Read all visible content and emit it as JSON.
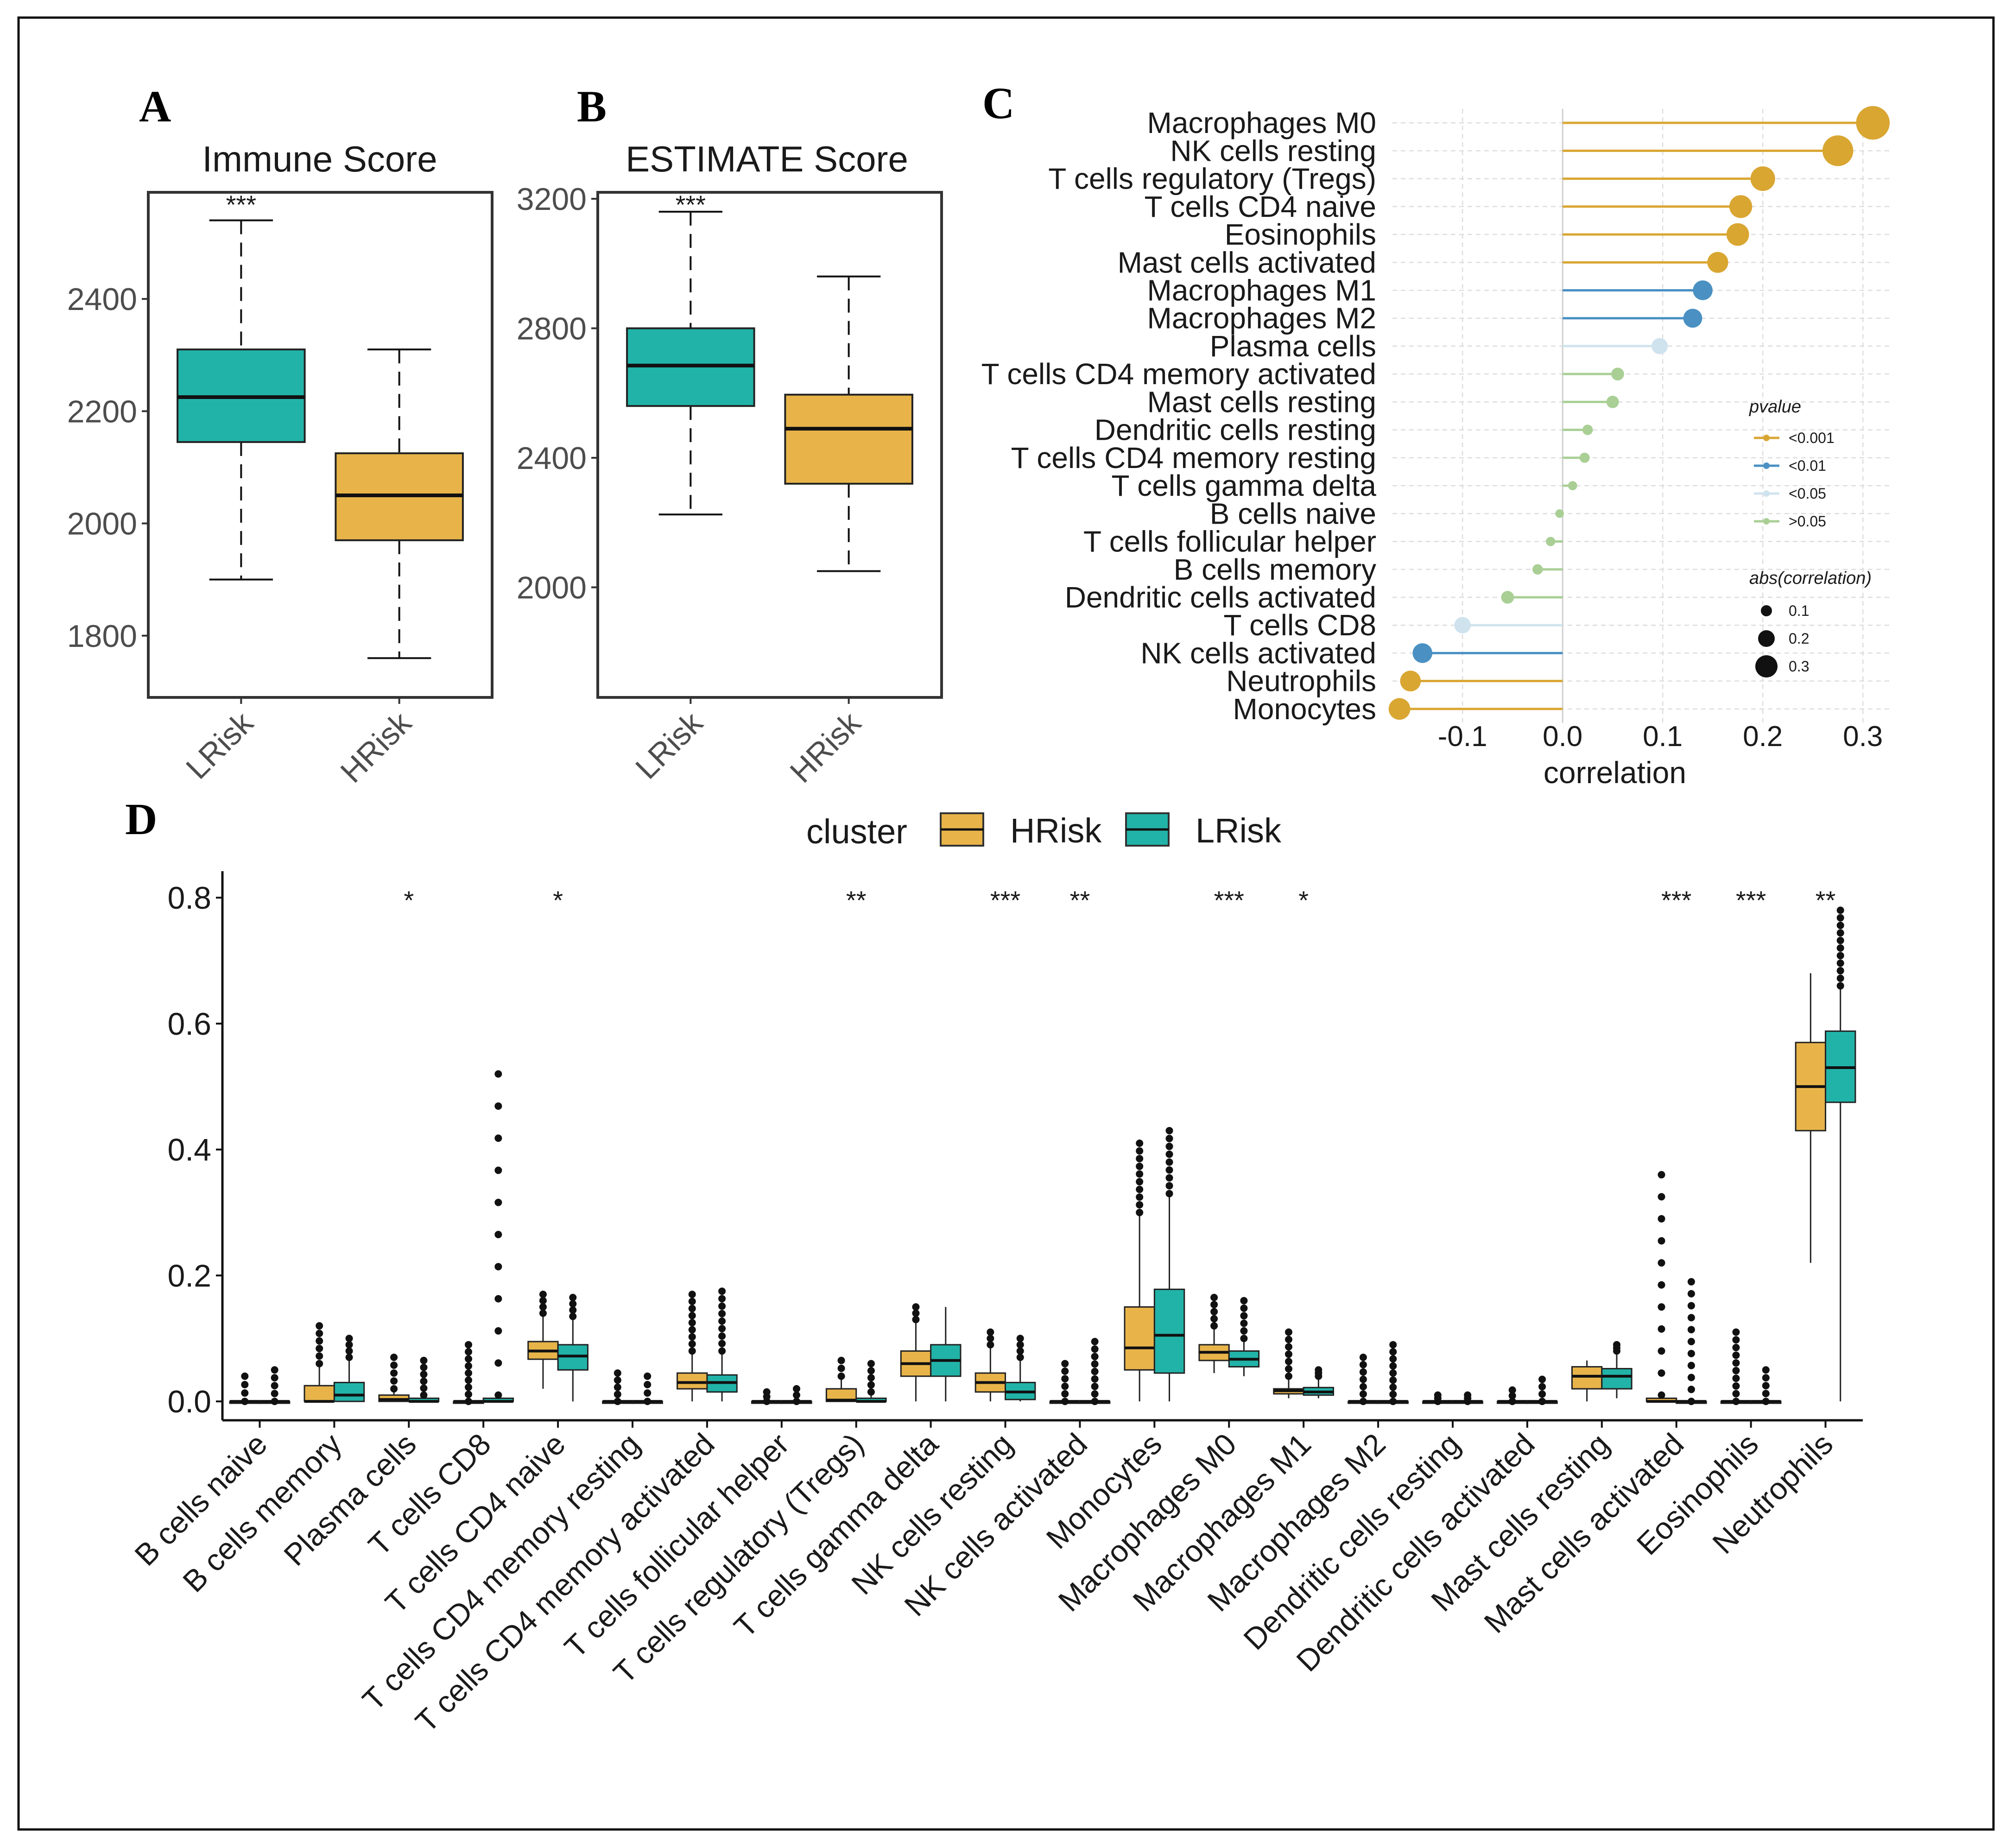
{
  "colors": {
    "hrisk": "#e8b44a",
    "lrisk": "#22b3a8",
    "p001": "#d9a632",
    "p01": "#4a90c2",
    "p05": "#cfe3ee",
    "p_ns": "#a9cf95"
  },
  "panels": {
    "A": {
      "letter": "A",
      "title": "Immune Score"
    },
    "B": {
      "letter": "B",
      "title": "ESTIMATE Score"
    },
    "C": {
      "letter": "C"
    },
    "D": {
      "letter": "D"
    }
  },
  "chart_data": [
    {
      "id": "A",
      "type": "boxplot",
      "title": "Immune Score",
      "categories": [
        "LRisk",
        "HRisk"
      ],
      "ylim": [
        1690,
        2590
      ],
      "yticks": [
        1800,
        2000,
        2200,
        2400
      ],
      "boxes": [
        {
          "group": "LRisk",
          "min": 1900,
          "q1": 2145,
          "median": 2225,
          "q3": 2310,
          "max": 2540,
          "color": "#22b3a8"
        },
        {
          "group": "HRisk",
          "min": 1760,
          "q1": 1970,
          "median": 2050,
          "q3": 2125,
          "max": 2310,
          "color": "#e8b44a"
        }
      ],
      "significance": "***"
    },
    {
      "id": "B",
      "type": "boxplot",
      "title": "ESTIMATE Score",
      "categories": [
        "LRisk",
        "HRisk"
      ],
      "ylim": [
        1660,
        3220
      ],
      "yticks": [
        2000,
        2400,
        2800,
        3200
      ],
      "boxes": [
        {
          "group": "LRisk",
          "min": 2225,
          "q1": 2560,
          "median": 2685,
          "q3": 2800,
          "max": 3160,
          "color": "#22b3a8"
        },
        {
          "group": "HRisk",
          "min": 2050,
          "q1": 2320,
          "median": 2490,
          "q3": 2595,
          "max": 2960,
          "color": "#e8b44a"
        }
      ],
      "significance": "***"
    },
    {
      "id": "C",
      "type": "lollipop",
      "xlabel": "correlation",
      "xlim": [
        -0.17,
        0.33
      ],
      "xticks": [
        -0.1,
        0.0,
        0.1,
        0.2,
        0.3
      ],
      "legend": {
        "pvalue_title": "pvalue",
        "pvalue_levels": [
          "<0.001",
          "<0.01",
          "<0.05",
          ">0.05"
        ],
        "size_title": "abs(correlation)",
        "size_levels": [
          "0.1",
          "0.2",
          "0.3"
        ]
      },
      "rows": [
        {
          "cell": "Macrophages M0",
          "corr": 0.31,
          "p": "<0.001"
        },
        {
          "cell": "NK cells resting",
          "corr": 0.275,
          "p": "<0.001"
        },
        {
          "cell": "T cells regulatory (Tregs)",
          "corr": 0.2,
          "p": "<0.001"
        },
        {
          "cell": "T cells CD4 naive",
          "corr": 0.178,
          "p": "<0.001"
        },
        {
          "cell": "Eosinophils",
          "corr": 0.175,
          "p": "<0.001"
        },
        {
          "cell": "Mast cells activated",
          "corr": 0.155,
          "p": "<0.001"
        },
        {
          "cell": "Macrophages M1",
          "corr": 0.14,
          "p": "<0.01"
        },
        {
          "cell": "Macrophages M2",
          "corr": 0.13,
          "p": "<0.01"
        },
        {
          "cell": "Plasma cells",
          "corr": 0.097,
          "p": "<0.05"
        },
        {
          "cell": "T cells CD4 memory activated",
          "corr": 0.055,
          "p": ">0.05"
        },
        {
          "cell": "Mast cells resting",
          "corr": 0.05,
          "p": ">0.05"
        },
        {
          "cell": "Dendritic cells resting",
          "corr": 0.025,
          "p": ">0.05"
        },
        {
          "cell": "T cells CD4 memory resting",
          "corr": 0.022,
          "p": ">0.05"
        },
        {
          "cell": "T cells gamma delta",
          "corr": 0.01,
          "p": ">0.05"
        },
        {
          "cell": "B cells naive",
          "corr": -0.003,
          "p": ">0.05"
        },
        {
          "cell": "T cells follicular helper",
          "corr": -0.012,
          "p": ">0.05"
        },
        {
          "cell": "B cells memory",
          "corr": -0.025,
          "p": ">0.05"
        },
        {
          "cell": "Dendritic cells activated",
          "corr": -0.055,
          "p": ">0.05"
        },
        {
          "cell": "T cells CD8",
          "corr": -0.1,
          "p": "<0.05"
        },
        {
          "cell": "NK cells activated",
          "corr": -0.14,
          "p": "<0.01"
        },
        {
          "cell": "Neutrophils",
          "corr": -0.152,
          "p": "<0.001"
        },
        {
          "cell": "Monocytes",
          "corr": -0.163,
          "p": "<0.001"
        }
      ]
    },
    {
      "id": "D",
      "type": "grouped_boxplot",
      "legend_title": "cluster",
      "legend_items": [
        "HRisk",
        "LRisk"
      ],
      "ylim": [
        -0.03,
        0.82
      ],
      "yticks": [
        0.0,
        0.2,
        0.4,
        0.6,
        0.8
      ],
      "groups": [
        {
          "cell": "B cells naive",
          "sig": "",
          "HRisk": [
            0,
            0,
            0,
            0,
            0,
            0.04
          ],
          "LRisk": [
            0,
            0,
            0,
            0,
            0,
            0.05
          ]
        },
        {
          "cell": "B cells memory",
          "sig": "",
          "HRisk": [
            0,
            0,
            0,
            0.025,
            0.06,
            0.12
          ],
          "LRisk": [
            0,
            0,
            0.01,
            0.03,
            0.07,
            0.1
          ]
        },
        {
          "cell": "Plasma cells",
          "sig": "*",
          "HRisk": [
            0,
            0,
            0.003,
            0.01,
            0.02,
            0.07
          ],
          "LRisk": [
            0,
            0,
            0,
            0.005,
            0.01,
            0.065
          ]
        },
        {
          "cell": "T cells CD8",
          "sig": "",
          "HRisk": [
            0,
            0,
            0,
            0,
            0,
            0.09
          ],
          "LRisk": [
            0,
            0,
            0,
            0.005,
            0.01,
            0.52
          ]
        },
        {
          "cell": "T cells CD4 naive",
          "sig": "*",
          "HRisk": [
            0.02,
            0.067,
            0.08,
            0.095,
            0.14,
            0.17
          ],
          "LRisk": [
            0,
            0.05,
            0.072,
            0.09,
            0.135,
            0.165
          ]
        },
        {
          "cell": "T cells CD4 memory resting",
          "sig": "",
          "HRisk": [
            0,
            0,
            0,
            0,
            0,
            0.045
          ],
          "LRisk": [
            0,
            0,
            0,
            0,
            0,
            0.04
          ]
        },
        {
          "cell": "T cells CD4 memory activated",
          "sig": "",
          "HRisk": [
            0,
            0.02,
            0.03,
            0.045,
            0.08,
            0.17
          ],
          "LRisk": [
            0,
            0.015,
            0.03,
            0.042,
            0.08,
            0.175
          ]
        },
        {
          "cell": "T cells follicular helper",
          "sig": "",
          "HRisk": [
            0,
            0,
            0,
            0,
            0,
            0.015
          ],
          "LRisk": [
            0,
            0,
            0,
            0,
            0,
            0.02
          ]
        },
        {
          "cell": "T cells regulatory (Tregs)",
          "sig": "**",
          "HRisk": [
            0,
            0,
            0.002,
            0.02,
            0.04,
            0.065
          ],
          "LRisk": [
            0,
            0,
            0,
            0.005,
            0.015,
            0.06
          ]
        },
        {
          "cell": "T cells gamma delta",
          "sig": "",
          "HRisk": [
            0,
            0.04,
            0.06,
            0.08,
            0.13,
            0.15
          ],
          "LRisk": [
            0,
            0.04,
            0.065,
            0.09,
            0.15,
            0.15
          ]
        },
        {
          "cell": "NK cells resting",
          "sig": "***",
          "HRisk": [
            0,
            0.015,
            0.03,
            0.045,
            0.09,
            0.11
          ],
          "LRisk": [
            0,
            0.003,
            0.015,
            0.03,
            0.07,
            0.1
          ]
        },
        {
          "cell": "NK cells activated",
          "sig": "**",
          "HRisk": [
            0,
            0,
            0,
            0,
            0,
            0.06
          ],
          "LRisk": [
            0,
            0,
            0,
            0,
            0,
            0.095
          ]
        },
        {
          "cell": "Monocytes",
          "sig": "",
          "HRisk": [
            0,
            0.05,
            0.085,
            0.15,
            0.3,
            0.41
          ],
          "LRisk": [
            0,
            0.045,
            0.105,
            0.178,
            0.33,
            0.43
          ]
        },
        {
          "cell": "Macrophages M0",
          "sig": "***",
          "HRisk": [
            0.045,
            0.065,
            0.078,
            0.09,
            0.12,
            0.165
          ],
          "LRisk": [
            0.04,
            0.055,
            0.067,
            0.08,
            0.1,
            0.16
          ]
        },
        {
          "cell": "Macrophages M1",
          "sig": "*",
          "HRisk": [
            0.005,
            0.012,
            0.017,
            0.02,
            0.04,
            0.11
          ],
          "LRisk": [
            0.005,
            0.01,
            0.015,
            0.022,
            0.04,
            0.05
          ]
        },
        {
          "cell": "Macrophages M2",
          "sig": "",
          "HRisk": [
            0,
            0,
            0,
            0,
            0,
            0.07
          ],
          "LRisk": [
            0,
            0,
            0,
            0,
            0,
            0.09
          ]
        },
        {
          "cell": "Dendritic cells resting",
          "sig": "",
          "HRisk": [
            0,
            0,
            0,
            0,
            0,
            0.01
          ],
          "LRisk": [
            0,
            0,
            0,
            0,
            0,
            0.01
          ]
        },
        {
          "cell": "Dendritic cells activated",
          "sig": "",
          "HRisk": [
            0,
            0,
            0,
            0,
            0,
            0.018
          ],
          "LRisk": [
            0,
            0,
            0,
            0,
            0,
            0.035
          ]
        },
        {
          "cell": "Mast cells resting",
          "sig": "",
          "HRisk": [
            0,
            0.02,
            0.04,
            0.055,
            0.065,
            0.065
          ],
          "LRisk": [
            0.005,
            0.02,
            0.04,
            0.052,
            0.08,
            0.09
          ]
        },
        {
          "cell": "Mast cells activated",
          "sig": "***",
          "HRisk": [
            0,
            0,
            0,
            0.005,
            0.01,
            0.36
          ],
          "LRisk": [
            0,
            0,
            0,
            0,
            0,
            0.19
          ]
        },
        {
          "cell": "Eosinophils",
          "sig": "***",
          "HRisk": [
            0,
            0,
            0,
            0,
            0,
            0.11
          ],
          "LRisk": [
            0,
            0,
            0,
            0,
            0,
            0.05
          ]
        },
        {
          "cell": "Neutrophils",
          "sig": "**",
          "HRisk": [
            0.22,
            0.43,
            0.5,
            0.57,
            0.68,
            0.68
          ],
          "LRisk": [
            0,
            0.475,
            0.53,
            0.588,
            0.66,
            0.78
          ]
        }
      ]
    }
  ]
}
